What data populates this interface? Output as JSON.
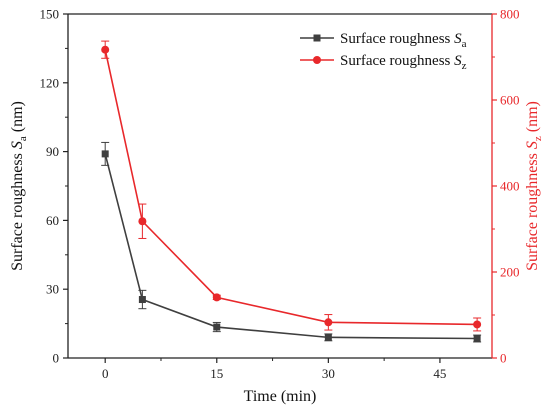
{
  "chart_data": {
    "type": "line",
    "x": [
      0,
      5,
      15,
      30,
      50
    ],
    "xlabel": "Time (min)",
    "xlim": [
      -5,
      52
    ],
    "xticks": [
      0,
      15,
      30,
      45
    ],
    "grid": false,
    "legend_position": "top-right",
    "y_left": {
      "label_main": "Surface roughness ",
      "label_var": "S",
      "label_sub": "a",
      "label_unit": " (nm)",
      "lim": [
        0,
        150
      ],
      "ticks": [
        0,
        30,
        60,
        90,
        120,
        150
      ],
      "color": "#222222"
    },
    "y_right": {
      "label_main": "Surface roughness ",
      "label_var": "S",
      "label_sub": "z",
      "label_unit": " (nm)",
      "lim": [
        0,
        800
      ],
      "ticks": [
        0,
        200,
        400,
        600,
        800
      ],
      "color": "#e8282b"
    },
    "series": [
      {
        "name": "Surface roughness Sa",
        "legend_main": "Surface roughness ",
        "legend_var": "S",
        "legend_sub": "a",
        "axis": "left",
        "marker": "square",
        "color": "#3f3f3f",
        "values": [
          89,
          25.5,
          13.5,
          9,
          8.5
        ],
        "errors": [
          5,
          4,
          2,
          1.5,
          1.5
        ]
      },
      {
        "name": "Surface roughness Sz",
        "legend_main": "Surface roughness ",
        "legend_var": "S",
        "legend_sub": "z",
        "axis": "right",
        "marker": "circle",
        "color": "#e8282b",
        "values": [
          717,
          318,
          141,
          83,
          78
        ],
        "errors": [
          20,
          40,
          5,
          18,
          15
        ]
      }
    ]
  }
}
